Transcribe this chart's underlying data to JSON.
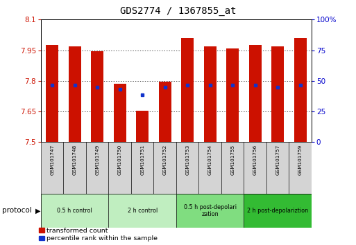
{
  "title": "GDS2774 / 1367855_at",
  "samples": [
    "GSM101747",
    "GSM101748",
    "GSM101749",
    "GSM101750",
    "GSM101751",
    "GSM101752",
    "GSM101753",
    "GSM101754",
    "GSM101755",
    "GSM101756",
    "GSM101757",
    "GSM101759"
  ],
  "red_top": [
    7.975,
    7.97,
    7.945,
    7.785,
    7.655,
    7.795,
    8.01,
    7.97,
    7.96,
    7.975,
    7.97,
    8.01
  ],
  "red_bottom": [
    7.5,
    7.5,
    7.5,
    7.5,
    7.5,
    7.5,
    7.5,
    7.5,
    7.5,
    7.5,
    7.5,
    7.5
  ],
  "blue_val": [
    7.78,
    7.78,
    7.77,
    7.76,
    7.73,
    7.77,
    7.78,
    7.78,
    7.78,
    7.78,
    7.77,
    7.78
  ],
  "ylim": [
    7.5,
    8.1
  ],
  "yticks_left": [
    7.5,
    7.65,
    7.8,
    7.95,
    8.1
  ],
  "yticks_right_vals": [
    0,
    25,
    50,
    75,
    100
  ],
  "yticks_right_labels": [
    "0",
    "25",
    "50",
    "75",
    "100%"
  ],
  "groups": [
    {
      "label": "0.5 h control",
      "start": 0,
      "end": 3,
      "color": "#c0eec0"
    },
    {
      "label": "2 h control",
      "start": 3,
      "end": 6,
      "color": "#c0eec0"
    },
    {
      "label": "0.5 h post-depolarization",
      "start": 6,
      "end": 9,
      "color": "#80dd80"
    },
    {
      "label": "2 h post-depolariztion",
      "start": 9,
      "end": 12,
      "color": "#33bb33"
    }
  ],
  "bar_width": 0.55,
  "red_color": "#cc1100",
  "blue_color": "#1133cc",
  "title_fontsize": 10,
  "tick_color_left": "#cc1100",
  "tick_color_right": "#0000cc",
  "bg_color": "#ffffff",
  "sample_box_color": "#d4d4d4",
  "grid_color": "#000000"
}
